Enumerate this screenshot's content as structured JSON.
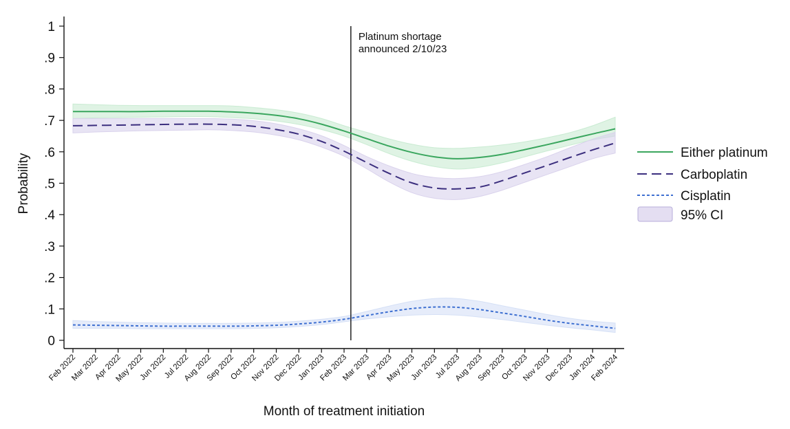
{
  "chart_data": {
    "type": "line",
    "title": "",
    "xlabel": "Month of treatment initiation",
    "ylabel": "Probability",
    "ylim": [
      0,
      1
    ],
    "yticks": [
      0,
      0.1,
      0.2,
      0.3,
      0.4,
      0.5,
      0.6,
      0.7,
      0.8,
      0.9,
      1
    ],
    "ytick_labels": [
      "0",
      ".1",
      ".2",
      ".3",
      ".4",
      ".5",
      ".6",
      ".7",
      ".8",
      ".9",
      "1"
    ],
    "categories": [
      "Feb 2022",
      "Mar 2022",
      "Apr 2022",
      "May 2022",
      "Jun 2022",
      "Jul 2022",
      "Aug 2022",
      "Sep 2022",
      "Oct 2022",
      "Nov 2022",
      "Dec 2022",
      "Jan 2023",
      "Feb 2023",
      "Mar 2023",
      "Apr 2023",
      "May 2023",
      "Jun 2023",
      "Jul 2023",
      "Aug 2023",
      "Sep 2023",
      "Oct 2023",
      "Nov 2023",
      "Dec 2023",
      "Jan 2024",
      "Feb 2024"
    ],
    "series": [
      {
        "name": "Either platinum",
        "color": "#3aa65e",
        "band_color": "#c9ebd2",
        "dash": "solid",
        "values": [
          0.728,
          0.728,
          0.728,
          0.728,
          0.729,
          0.729,
          0.729,
          0.727,
          0.723,
          0.716,
          0.705,
          0.688,
          0.666,
          0.642,
          0.618,
          0.598,
          0.584,
          0.578,
          0.582,
          0.592,
          0.607,
          0.623,
          0.64,
          0.657,
          0.673
        ],
        "lower": [
          0.706,
          0.708,
          0.709,
          0.71,
          0.711,
          0.712,
          0.712,
          0.709,
          0.705,
          0.698,
          0.687,
          0.671,
          0.65,
          0.623,
          0.594,
          0.57,
          0.553,
          0.545,
          0.551,
          0.565,
          0.584,
          0.603,
          0.621,
          0.638,
          0.65
        ],
        "upper": [
          0.752,
          0.75,
          0.748,
          0.747,
          0.747,
          0.747,
          0.747,
          0.746,
          0.741,
          0.734,
          0.723,
          0.706,
          0.683,
          0.662,
          0.641,
          0.624,
          0.613,
          0.611,
          0.615,
          0.622,
          0.632,
          0.645,
          0.661,
          0.683,
          0.71
        ]
      },
      {
        "name": "Carboplatin",
        "color": "#3b2e7e",
        "band_color": "#d9d2ec",
        "dash": "long-dash",
        "values": [
          0.683,
          0.684,
          0.685,
          0.686,
          0.687,
          0.688,
          0.688,
          0.686,
          0.681,
          0.671,
          0.656,
          0.633,
          0.602,
          0.566,
          0.531,
          0.501,
          0.485,
          0.482,
          0.488,
          0.508,
          0.533,
          0.557,
          0.582,
          0.606,
          0.628
        ],
        "lower": [
          0.66,
          0.663,
          0.665,
          0.667,
          0.668,
          0.669,
          0.67,
          0.668,
          0.663,
          0.653,
          0.638,
          0.615,
          0.586,
          0.546,
          0.504,
          0.47,
          0.452,
          0.448,
          0.458,
          0.478,
          0.503,
          0.528,
          0.553,
          0.578,
          0.596
        ],
        "upper": [
          0.706,
          0.706,
          0.706,
          0.706,
          0.706,
          0.706,
          0.706,
          0.704,
          0.699,
          0.689,
          0.673,
          0.651,
          0.62,
          0.585,
          0.555,
          0.531,
          0.518,
          0.515,
          0.521,
          0.537,
          0.56,
          0.585,
          0.613,
          0.64,
          0.662
        ]
      },
      {
        "name": "Cisplatin",
        "color": "#3d6fd1",
        "band_color": "#d5e0f6",
        "dash": "short-dash",
        "values": [
          0.049,
          0.048,
          0.047,
          0.046,
          0.045,
          0.045,
          0.045,
          0.045,
          0.046,
          0.048,
          0.052,
          0.058,
          0.067,
          0.079,
          0.091,
          0.101,
          0.106,
          0.105,
          0.098,
          0.087,
          0.076,
          0.064,
          0.054,
          0.046,
          0.038
        ],
        "lower": [
          0.038,
          0.038,
          0.038,
          0.037,
          0.037,
          0.037,
          0.037,
          0.037,
          0.038,
          0.04,
          0.044,
          0.05,
          0.059,
          0.068,
          0.075,
          0.08,
          0.082,
          0.08,
          0.074,
          0.066,
          0.057,
          0.048,
          0.04,
          0.033,
          0.025
        ],
        "upper": [
          0.063,
          0.06,
          0.058,
          0.056,
          0.055,
          0.054,
          0.054,
          0.054,
          0.055,
          0.057,
          0.061,
          0.067,
          0.076,
          0.092,
          0.109,
          0.124,
          0.133,
          0.133,
          0.124,
          0.11,
          0.096,
          0.082,
          0.07,
          0.061,
          0.055
        ]
      }
    ],
    "ci_label": "95% CI",
    "vline": {
      "x_month_index": 12.3,
      "label_line1": "Platinum shortage",
      "label_line2": "announced 2/10/23"
    },
    "legend_position": "right"
  }
}
